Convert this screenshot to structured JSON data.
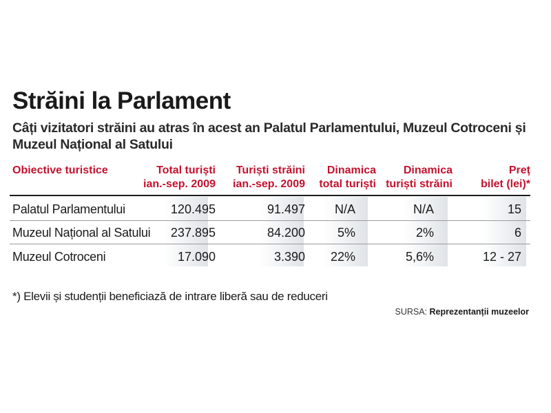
{
  "title": "Străini la Parlament",
  "subtitle": "Câți vizitatori străini au atras în acest an Palatul Parlamentului, Muzeul Cotroceni și Muzeul Național al Satului",
  "chart_data": {
    "type": "table",
    "columns": [
      {
        "line1": "Obiective turistice",
        "line2": ""
      },
      {
        "line1": "Total turiști",
        "line2": "ian.-sep. 2009"
      },
      {
        "line1": "Turiști străini",
        "line2": "ian.-sep. 2009"
      },
      {
        "line1": "Dinamica",
        "line2": "total turiști"
      },
      {
        "line1": "Dinamica",
        "line2": "turiști străini"
      },
      {
        "line1": "Preț",
        "line2": "bilet (lei)*"
      }
    ],
    "rows": [
      [
        "Palatul Parlamentului",
        "120.495",
        "91.497",
        "N/A",
        "N/A",
        "15"
      ],
      [
        "Muzeul Național al Satului",
        "237.895",
        "84.200",
        "5%",
        "2%",
        "6"
      ],
      [
        "Muzeul Cotroceni",
        "17.090",
        "3.390",
        "22%",
        "5,6%",
        "12 - 27"
      ]
    ],
    "header_color": "#c4122f"
  },
  "footnote": "*) Elevii și studenții beneficiază de intrare liberă sau de reduceri",
  "source": {
    "label": "SURSA:",
    "value": "Reprezentanții muzeelor"
  }
}
